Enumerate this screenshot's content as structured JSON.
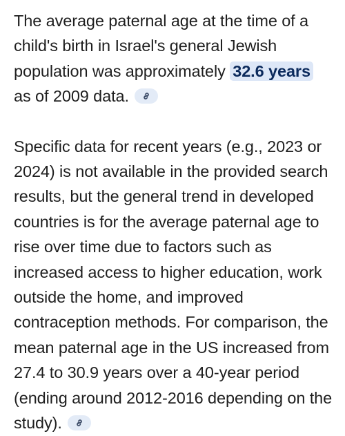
{
  "paragraph_1": {
    "before": "The average paternal age at the time of a child's birth in Israel's general Jewish population was approximately ",
    "highlight": "32.6 years",
    "after": " as of 2009 data."
  },
  "paragraph_2": {
    "text": "Specific data for recent years (e.g., 2023 or 2024) is not available in the provided search results, but the general trend in developed countries is for the average paternal age to rise over time due to factors such as increased access to higher education, work outside the home, and improved contraception methods. For comparison, the mean paternal age in the US increased from 27.4 to 30.9 years over a 40-year period (ending around 2012-2016 depending on the study)."
  },
  "icons": {
    "source_chip": "link-icon"
  },
  "colors": {
    "text": "#1f1f1f",
    "highlight_bg": "#dde7f7",
    "highlight_text": "#0b2a5c",
    "chip_bg": "#e3ebf7",
    "chip_icon": "#3b4a66"
  }
}
